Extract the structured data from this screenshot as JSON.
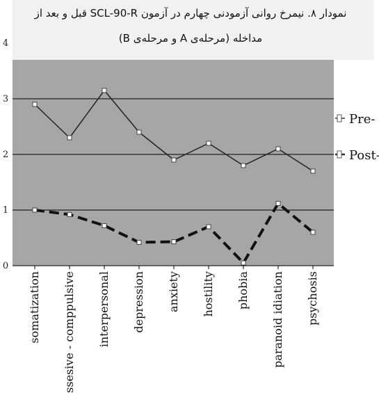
{
  "chart_data": {
    "type": "line",
    "title": [
      "نمودار ۸. نیمرخ روانی آزمودنی چهارم در آزمون SCL-90-R قبل و بعد از",
      "مداخله (مرحله‌ی A و مرحله‌ی B)"
    ],
    "categories": [
      "somatization",
      "obssesive - comppulsive",
      "interpersonal",
      "depression",
      "anxiety",
      "hostility",
      "phobia",
      "paranoid idiation",
      "psychosis"
    ],
    "yticks": [
      "0",
      "1",
      "2",
      "3",
      "4"
    ],
    "ylim": [
      0,
      4
    ],
    "grid": true,
    "legend_position": "right",
    "series": [
      {
        "name": "Pre-",
        "values": [
          2.9,
          2.3,
          3.15,
          2.4,
          1.9,
          2.2,
          1.8,
          2.1,
          1.7
        ],
        "color": "#222222",
        "dash": false
      },
      {
        "name": "Post-",
        "values": [
          1.0,
          0.92,
          0.72,
          0.42,
          0.43,
          0.7,
          0.05,
          1.12,
          0.6
        ],
        "color": "#111111",
        "dash": true
      }
    ],
    "plot_background": "#a6a6a6"
  }
}
